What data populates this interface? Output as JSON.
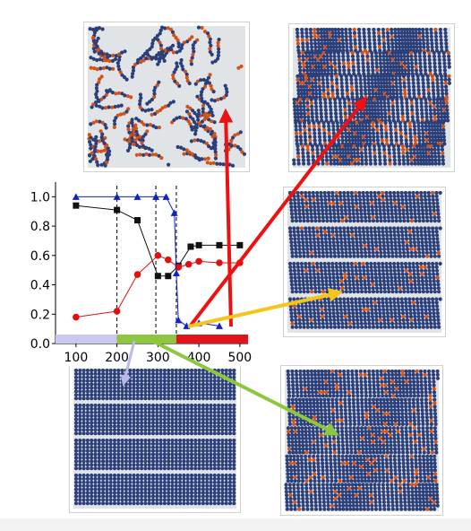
{
  "colors": {
    "black_series": "#111111",
    "red_series": "#e01010",
    "blue_series": "#1020d0",
    "bar_lavender": "#c8c8f0",
    "bar_green": "#8dc63f",
    "bar_red": "#e4131b",
    "arrow_red": "#ee1111",
    "arrow_yellow": "#f5c518",
    "arrow_green": "#8dc63f",
    "arrow_lavender": "#b8b8f0",
    "bead_blue": "#2b3f7a",
    "bead_orange": "#d2521a",
    "bead_gray": "#c9cdd4"
  },
  "chart_data": {
    "type": "line",
    "xlabel": "",
    "ylabel": "",
    "xlim": [
      50,
      520
    ],
    "ylim": [
      0.0,
      1.1
    ],
    "x_ticks": [
      "100",
      "200",
      "300",
      "400",
      "500"
    ],
    "y_ticks": [
      "0.0",
      "0.2",
      "0.4",
      "0.6",
      "0.8",
      "1.0"
    ],
    "grid": false,
    "dashed_vlines": [
      200,
      295,
      345
    ],
    "series": [
      {
        "marker": "square",
        "color": "black_series",
        "x": [
          100,
          200,
          250,
          300,
          325,
          350,
          380,
          400,
          450,
          500
        ],
        "y": [
          0.94,
          0.91,
          0.84,
          0.46,
          0.46,
          0.53,
          0.66,
          0.67,
          0.67,
          0.67
        ]
      },
      {
        "marker": "circle",
        "color": "red_series",
        "x": [
          100,
          200,
          250,
          300,
          325,
          350,
          375,
          400,
          450,
          500
        ],
        "y": [
          0.18,
          0.22,
          0.47,
          0.6,
          0.57,
          0.52,
          0.54,
          0.56,
          0.55,
          0.55
        ]
      },
      {
        "marker": "triangle",
        "color": "blue_series",
        "x": [
          100,
          200,
          250,
          295,
          320,
          340,
          345,
          350,
          370,
          400,
          450
        ],
        "y": [
          1.0,
          1.0,
          1.0,
          1.0,
          1.0,
          0.89,
          0.48,
          0.16,
          0.12,
          0.14,
          0.12
        ]
      }
    ],
    "phase_bars": [
      {
        "from": 50,
        "to": 200,
        "color": "bar_lavender"
      },
      {
        "from": 200,
        "to": 295,
        "color": "bar_green"
      },
      {
        "from": 295,
        "to": 345,
        "color": "bar_green"
      },
      {
        "from": 345,
        "to": 520,
        "color": "bar_red"
      }
    ]
  },
  "panels": [
    {
      "id": "top-left",
      "pattern": "disordered",
      "orange_fraction": 0.35
    },
    {
      "id": "top-right",
      "pattern": "wavy",
      "orange_fraction": 0.12
    },
    {
      "id": "mid-right",
      "pattern": "tilted-lamellae",
      "orange_fraction": 0.05
    },
    {
      "id": "bot-left",
      "pattern": "straight-lamellae",
      "orange_fraction": 0.0
    },
    {
      "id": "bot-right",
      "pattern": "defected-lamellae",
      "orange_fraction": 0.08
    }
  ],
  "arrows": [
    {
      "color": "arrow_red",
      "from_x": 258,
      "to_panel": "top-left"
    },
    {
      "color": "arrow_red",
      "from_x": 212,
      "to_panel": "top-right"
    },
    {
      "color": "arrow_yellow",
      "from_x": 170,
      "to_panel": "mid-right"
    },
    {
      "color": "arrow_green",
      "from_x": 130,
      "to_panel": "bot-right"
    },
    {
      "color": "arrow_lavender",
      "from_x": 110,
      "to_panel": "bot-left"
    }
  ]
}
